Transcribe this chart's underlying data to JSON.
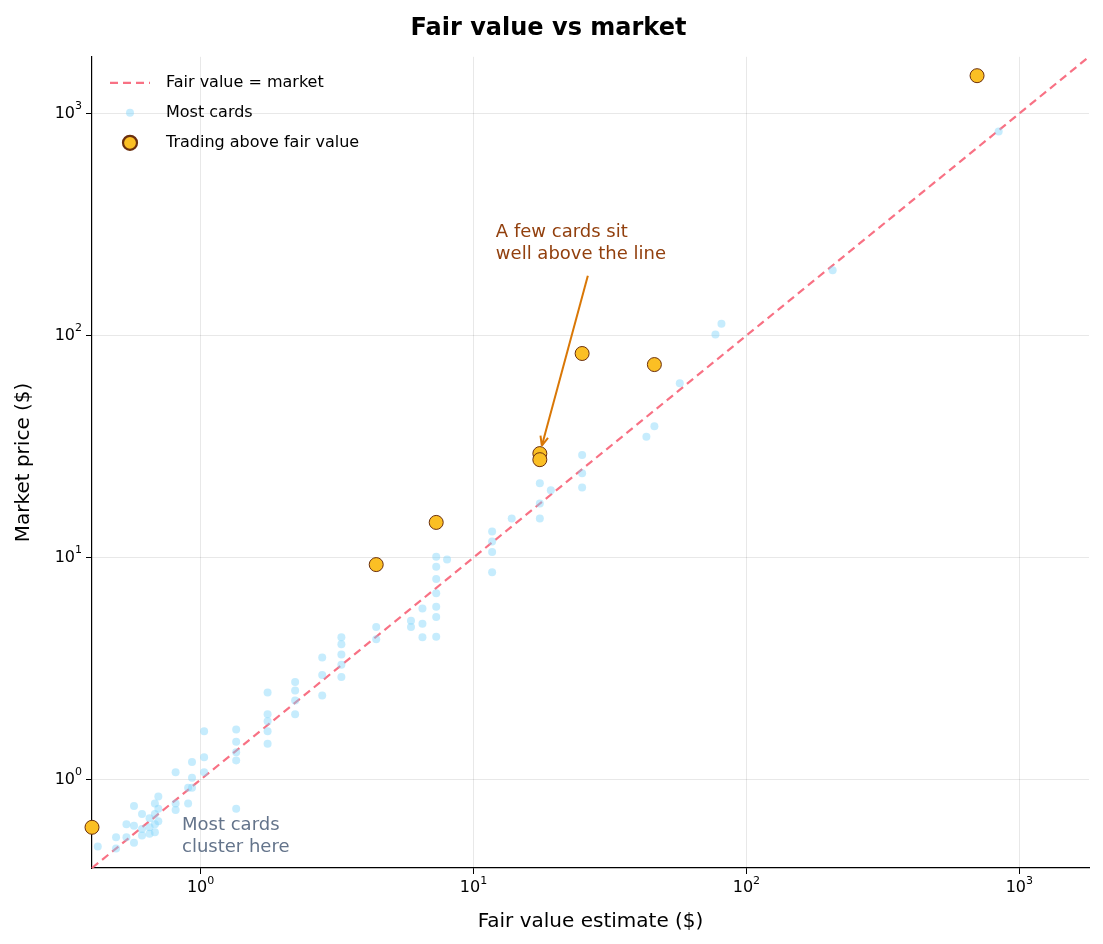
{
  "chart_data": {
    "type": "scatter",
    "title": "Fair value vs market",
    "xlabel": "Fair value estimate ($)",
    "ylabel": "Market price ($)",
    "log": "xy",
    "grid": true,
    "legend": "top left",
    "marker": "circle",
    "xlim": [
      0.4,
      1800
    ],
    "ylim": [
      0.4,
      1800
    ],
    "xticks": [
      {
        "value": 1,
        "label": "10$^{0}$"
      },
      {
        "value": 10,
        "label": "10$^{1}$"
      },
      {
        "value": 100,
        "label": "10$^{2}$"
      },
      {
        "value": 1000,
        "label": "10$^{3}$"
      }
    ],
    "yticks": [
      {
        "value": 1,
        "label": "10$^{0}$"
      },
      {
        "value": 10,
        "label": "10$^{1}$"
      },
      {
        "value": 100,
        "label": "10$^{2}$"
      },
      {
        "value": 1000,
        "label": "10$^{3}$"
      }
    ],
    "series": [
      {
        "name": "Fair value = market",
        "type": "line",
        "line_style": "dashed",
        "marker": "none",
        "color": "#f87184",
        "x": [
          0.4,
          1800
        ],
        "values": [
          0.4,
          1800
        ]
      },
      {
        "name": "Most cards",
        "type": "scatter",
        "color": "#81d4fa",
        "x": [
          0.42,
          0.49,
          0.49,
          0.535,
          0.535,
          0.57,
          0.57,
          0.57,
          0.61,
          0.61,
          0.61,
          0.65,
          0.65,
          0.65,
          0.68,
          0.68,
          0.68,
          0.68,
          0.7,
          0.7,
          0.7,
          0.81,
          0.81,
          0.81,
          0.9,
          0.9,
          0.93,
          0.93,
          0.93,
          1.03,
          1.03,
          1.03,
          1.35,
          1.35,
          1.35,
          1.35,
          1.35,
          1.76,
          1.76,
          1.76,
          1.76,
          1.76,
          2.22,
          2.22,
          2.22,
          2.22,
          2.79,
          2.79,
          2.79,
          3.28,
          3.28,
          3.28,
          3.28,
          3.28,
          4.4,
          4.4,
          5.9,
          5.9,
          6.5,
          6.5,
          6.5,
          7.3,
          7.3,
          7.3,
          7.3,
          7.3,
          7.3,
          7.3,
          8,
          11.7,
          11.7,
          11.7,
          11.7,
          13.8,
          17.5,
          17.5,
          17.5,
          19.2,
          25,
          25,
          25,
          43,
          46,
          57,
          77,
          81,
          207,
          840
        ],
        "values": [
          0.5,
          0.55,
          0.49,
          0.63,
          0.55,
          0.76,
          0.62,
          0.52,
          0.7,
          0.6,
          0.56,
          0.67,
          0.61,
          0.57,
          0.78,
          0.7,
          0.63,
          0.58,
          0.84,
          0.74,
          0.65,
          1.08,
          0.78,
          0.73,
          0.92,
          0.78,
          1.2,
          1.02,
          0.92,
          1.65,
          1.26,
          1.08,
          1.68,
          1.48,
          1.33,
          1.22,
          0.74,
          2.47,
          1.97,
          1.83,
          1.65,
          1.45,
          2.75,
          2.52,
          2.27,
          1.97,
          3.55,
          2.96,
          2.39,
          4.38,
          4.07,
          3.66,
          3.29,
          2.9,
          4.87,
          4.29,
          5.19,
          4.87,
          5.9,
          5.04,
          4.38,
          10.1,
          9.1,
          8,
          6.9,
          6,
          5.4,
          4.4,
          9.8,
          13.1,
          11.8,
          10.6,
          8.6,
          15,
          21.6,
          17.5,
          15,
          20.1,
          29,
          24,
          20.7,
          35,
          39,
          61,
          101,
          113,
          197,
          830
        ]
      },
      {
        "name": "Trading above fair value",
        "type": "scatter",
        "color": "#fbbf24",
        "x": [
          0.4,
          4.4,
          7.3,
          17.5,
          17.5,
          25,
          46,
          700
        ],
        "values": [
          0.61,
          9.3,
          14.4,
          29.4,
          27.6,
          83,
          74,
          1480
        ]
      }
    ],
    "annotations": [
      {
        "text": "A few cards sit\nwell above the line",
        "x": 17.5,
        "y": 30
      },
      "Most cards\ncluster here"
    ]
  }
}
